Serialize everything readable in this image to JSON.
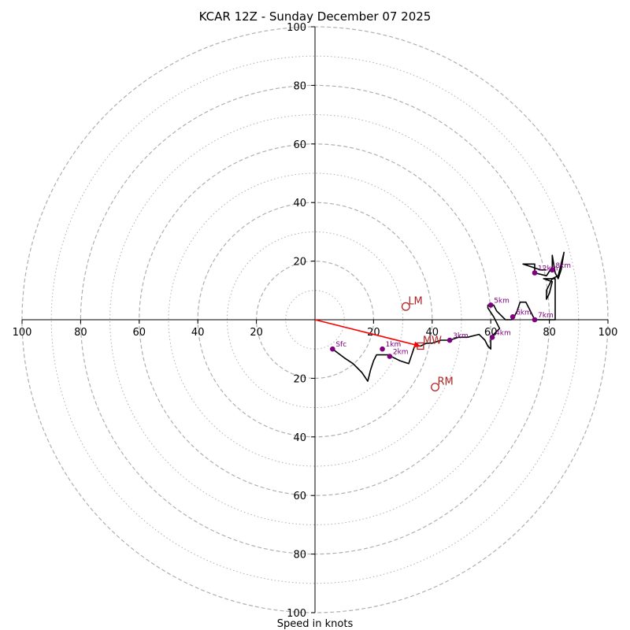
{
  "chart_data": {
    "type": "line",
    "title": "KCAR 12Z - Sunday December 07 2025",
    "xlabel": "Speed in knots",
    "ylabel": "",
    "xlim": [
      -100,
      100
    ],
    "ylim": [
      -100,
      100
    ],
    "rings_major": [
      20,
      40,
      60,
      80,
      100
    ],
    "rings_minor": [
      10,
      30,
      50,
      70,
      90
    ],
    "x_tick_labels": [
      "100",
      "80",
      "60",
      "40",
      "20",
      "20",
      "40",
      "60",
      "80",
      "100"
    ],
    "x_tick_values": [
      -100,
      -80,
      -60,
      -40,
      -20,
      20,
      40,
      60,
      80,
      100
    ],
    "y_tick_labels": [
      "100",
      "80",
      "60",
      "40",
      "20",
      "20",
      "40",
      "60",
      "80",
      "100"
    ],
    "y_tick_values": [
      100,
      80,
      60,
      40,
      20,
      -20,
      -40,
      -60,
      -80,
      -100
    ],
    "hodograph_trace": [
      [
        6,
        -10
      ],
      [
        10,
        -13
      ],
      [
        13,
        -15
      ],
      [
        16,
        -18
      ],
      [
        18,
        -21
      ],
      [
        19,
        -17
      ],
      [
        20,
        -14
      ],
      [
        21,
        -12
      ],
      [
        23,
        -12
      ],
      [
        25,
        -12
      ],
      [
        27,
        -13
      ],
      [
        29,
        -14
      ],
      [
        32,
        -15
      ],
      [
        33,
        -12
      ],
      [
        34,
        -9
      ],
      [
        36,
        -9
      ],
      [
        38,
        -8
      ],
      [
        40,
        -8
      ],
      [
        43,
        -7
      ],
      [
        46,
        -7
      ],
      [
        49,
        -6
      ],
      [
        52,
        -6
      ],
      [
        56,
        -5
      ],
      [
        58,
        -7
      ],
      [
        59,
        -9
      ],
      [
        60,
        -10
      ],
      [
        60,
        -7
      ],
      [
        61,
        -5
      ],
      [
        62,
        -4
      ],
      [
        63,
        -3
      ],
      [
        62,
        -1
      ],
      [
        61,
        1
      ],
      [
        59,
        4
      ],
      [
        59,
        5
      ],
      [
        61,
        5
      ],
      [
        62,
        3
      ],
      [
        64,
        1
      ],
      [
        65,
        0
      ],
      [
        67,
        0
      ],
      [
        68,
        1
      ],
      [
        69,
        3
      ],
      [
        70,
        6
      ],
      [
        72,
        6
      ],
      [
        73,
        4
      ],
      [
        74,
        2
      ],
      [
        75,
        0
      ],
      [
        77,
        0
      ],
      [
        79,
        0
      ],
      [
        81,
        0
      ],
      [
        82,
        0
      ],
      [
        82,
        6
      ],
      [
        82,
        14
      ],
      [
        81,
        14
      ],
      [
        80,
        12
      ],
      [
        79,
        10
      ],
      [
        79,
        7
      ],
      [
        80,
        9
      ],
      [
        81,
        13
      ],
      [
        78,
        14
      ],
      [
        81,
        14
      ],
      [
        83,
        15
      ],
      [
        85,
        23
      ],
      [
        84,
        17
      ],
      [
        83,
        14
      ],
      [
        82,
        16
      ],
      [
        81,
        22
      ],
      [
        81,
        18
      ],
      [
        79,
        15
      ],
      [
        75,
        16
      ],
      [
        75,
        19
      ],
      [
        71,
        19
      ],
      [
        74,
        18
      ],
      [
        77,
        17
      ],
      [
        79,
        17
      ]
    ],
    "height_markers": [
      {
        "label": "Sfc",
        "u": 6,
        "v": -10
      },
      {
        "label": "1km",
        "u": 23,
        "v": -10
      },
      {
        "label": "2km",
        "u": 25.5,
        "v": -12.5
      },
      {
        "label": "3km",
        "u": 46,
        "v": -7
      },
      {
        "label": "4km",
        "u": 60.5,
        "v": -6
      },
      {
        "label": "5km",
        "u": 60,
        "v": 5
      },
      {
        "label": "6km",
        "u": 67.5,
        "v": 1
      },
      {
        "label": "7km",
        "u": 75,
        "v": 0
      },
      {
        "label": "8km",
        "u": 81,
        "v": 17
      },
      {
        "label": "12km",
        "u": 75,
        "v": 16
      }
    ],
    "storm_motion": [
      {
        "label": "LM",
        "u": 31,
        "v": 4.5
      },
      {
        "label": "MW",
        "u": 36,
        "v": -9
      },
      {
        "label": "RM",
        "u": 41,
        "v": -23
      }
    ],
    "shear_vector": {
      "from": [
        0,
        0
      ],
      "to": [
        36,
        -9
      ]
    },
    "colors": {
      "trace": "#000000",
      "marker": "#800080",
      "motion": "#b22222",
      "shear": "#ff0000",
      "grid": "#b0b0b0"
    }
  }
}
